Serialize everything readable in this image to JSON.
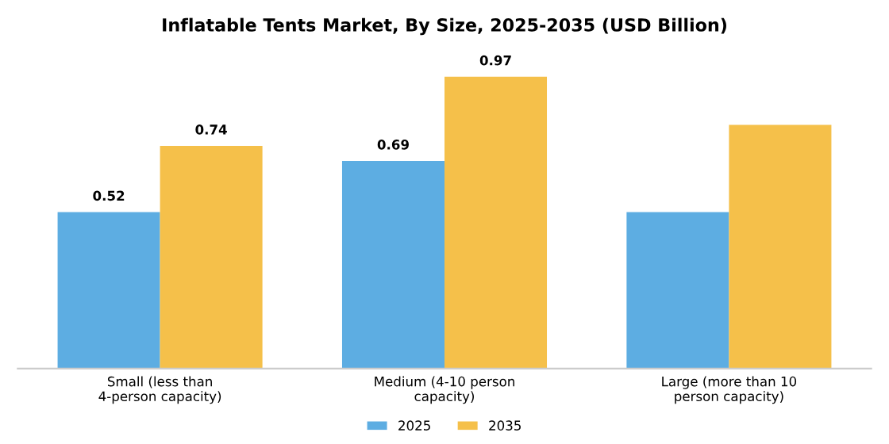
{
  "chart_data": {
    "type": "bar",
    "title": "Inflatable Tents Market, By Size, 2025-2035 (USD Billion)",
    "categories": [
      "Small (less than\n4-person capacity)",
      "Medium (4-10 person\ncapacity)",
      "Large (more than 10\nperson capacity)"
    ],
    "series": [
      {
        "name": "2025",
        "color": "#5dade2",
        "values": [
          0.52,
          0.69,
          0.52
        ],
        "value_labels": [
          "0.52",
          "0.69",
          null
        ]
      },
      {
        "name": "2035",
        "color": "#f5c04a",
        "values": [
          0.74,
          0.97,
          0.81
        ],
        "value_labels": [
          "0.74",
          "0.97",
          null
        ]
      }
    ],
    "legend": "bottom"
  }
}
